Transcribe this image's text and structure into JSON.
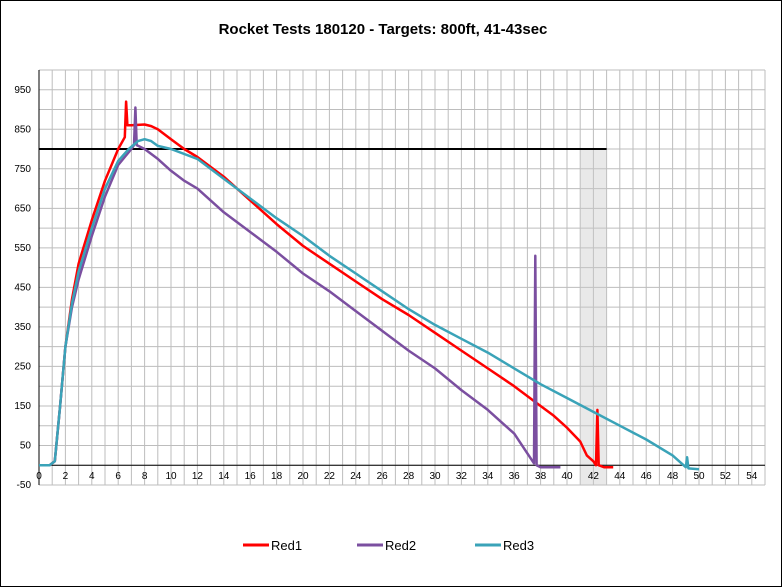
{
  "chart_data": {
    "type": "line",
    "title": "Rocket Tests 180120 - Targets: 800ft, 41-43sec",
    "xlabel": "",
    "ylabel": "",
    "xlim": [
      0,
      55
    ],
    "ylim": [
      -50,
      1000
    ],
    "x_ticks": [
      "0",
      "2",
      "4",
      "6",
      "8",
      "10",
      "12",
      "14",
      "16",
      "18",
      "20",
      "22",
      "24",
      "26",
      "28",
      "30",
      "32",
      "34",
      "36",
      "38",
      "40",
      "42",
      "44",
      "46",
      "48",
      "50",
      "52",
      "54"
    ],
    "y_ticks": [
      "-50",
      "50",
      "150",
      "250",
      "350",
      "450",
      "550",
      "650",
      "750",
      "850",
      "950"
    ],
    "grid": true,
    "legend_position": "bottom",
    "target_altitude": 800,
    "target_window": [
      41,
      43
    ],
    "series": [
      {
        "name": "Red1",
        "color": "#ff0000",
        "points": [
          [
            0,
            0
          ],
          [
            0.8,
            0
          ],
          [
            1.2,
            10
          ],
          [
            1.6,
            150
          ],
          [
            2,
            300
          ],
          [
            2.5,
            420
          ],
          [
            3,
            510
          ],
          [
            4,
            620
          ],
          [
            5,
            720
          ],
          [
            6,
            800
          ],
          [
            6.5,
            830
          ],
          [
            6.6,
            920
          ],
          [
            6.7,
            860
          ],
          [
            7,
            860
          ],
          [
            8,
            862
          ],
          [
            8.5,
            858
          ],
          [
            9,
            850
          ],
          [
            10,
            825
          ],
          [
            11,
            800
          ],
          [
            12,
            780
          ],
          [
            14,
            730
          ],
          [
            16,
            670
          ],
          [
            18,
            610
          ],
          [
            20,
            555
          ],
          [
            22,
            510
          ],
          [
            24,
            465
          ],
          [
            26,
            420
          ],
          [
            28,
            380
          ],
          [
            30,
            335
          ],
          [
            32,
            290
          ],
          [
            34,
            245
          ],
          [
            36,
            200
          ],
          [
            37,
            175
          ],
          [
            38,
            150
          ],
          [
            39,
            125
          ],
          [
            40,
            95
          ],
          [
            41,
            60
          ],
          [
            41.5,
            25
          ],
          [
            42,
            10
          ],
          [
            42.2,
            0
          ],
          [
            42.3,
            140
          ],
          [
            42.4,
            0
          ],
          [
            42.8,
            -5
          ],
          [
            43.5,
            -5
          ]
        ]
      },
      {
        "name": "Red2",
        "color": "#7b4fa0",
        "points": [
          [
            0,
            0
          ],
          [
            0.8,
            0
          ],
          [
            1.2,
            10
          ],
          [
            1.6,
            150
          ],
          [
            2,
            300
          ],
          [
            2.5,
            400
          ],
          [
            3,
            470
          ],
          [
            4,
            580
          ],
          [
            5,
            680
          ],
          [
            6,
            760
          ],
          [
            7,
            800
          ],
          [
            7.2,
            810
          ],
          [
            7.3,
            905
          ],
          [
            7.4,
            810
          ],
          [
            8,
            800
          ],
          [
            9,
            775
          ],
          [
            10,
            745
          ],
          [
            11,
            720
          ],
          [
            12,
            700
          ],
          [
            14,
            640
          ],
          [
            16,
            590
          ],
          [
            18,
            540
          ],
          [
            20,
            485
          ],
          [
            22,
            440
          ],
          [
            24,
            390
          ],
          [
            26,
            340
          ],
          [
            28,
            290
          ],
          [
            30,
            245
          ],
          [
            32,
            190
          ],
          [
            34,
            140
          ],
          [
            35,
            110
          ],
          [
            36,
            80
          ],
          [
            37,
            30
          ],
          [
            37.5,
            5
          ],
          [
            37.6,
            530
          ],
          [
            37.7,
            0
          ],
          [
            38,
            -5
          ],
          [
            39.5,
            -5
          ]
        ]
      },
      {
        "name": "Red3",
        "color": "#3aa3b8",
        "points": [
          [
            0,
            0
          ],
          [
            0.8,
            0
          ],
          [
            1.2,
            10
          ],
          [
            1.6,
            150
          ],
          [
            2,
            300
          ],
          [
            2.5,
            410
          ],
          [
            3,
            490
          ],
          [
            4,
            600
          ],
          [
            5,
            700
          ],
          [
            6,
            770
          ],
          [
            6.8,
            800
          ],
          [
            7.5,
            820
          ],
          [
            8,
            825
          ],
          [
            8.5,
            820
          ],
          [
            9,
            808
          ],
          [
            10,
            800
          ],
          [
            12,
            775
          ],
          [
            14,
            725
          ],
          [
            16,
            675
          ],
          [
            18,
            625
          ],
          [
            20,
            580
          ],
          [
            22,
            530
          ],
          [
            24,
            485
          ],
          [
            26,
            440
          ],
          [
            28,
            395
          ],
          [
            30,
            355
          ],
          [
            32,
            320
          ],
          [
            34,
            285
          ],
          [
            36,
            245
          ],
          [
            38,
            205
          ],
          [
            40,
            170
          ],
          [
            42,
            135
          ],
          [
            44,
            100
          ],
          [
            46,
            65
          ],
          [
            48,
            25
          ],
          [
            49,
            -5
          ],
          [
            49.1,
            20
          ],
          [
            49.2,
            -8
          ],
          [
            50,
            -10
          ]
        ]
      }
    ]
  }
}
